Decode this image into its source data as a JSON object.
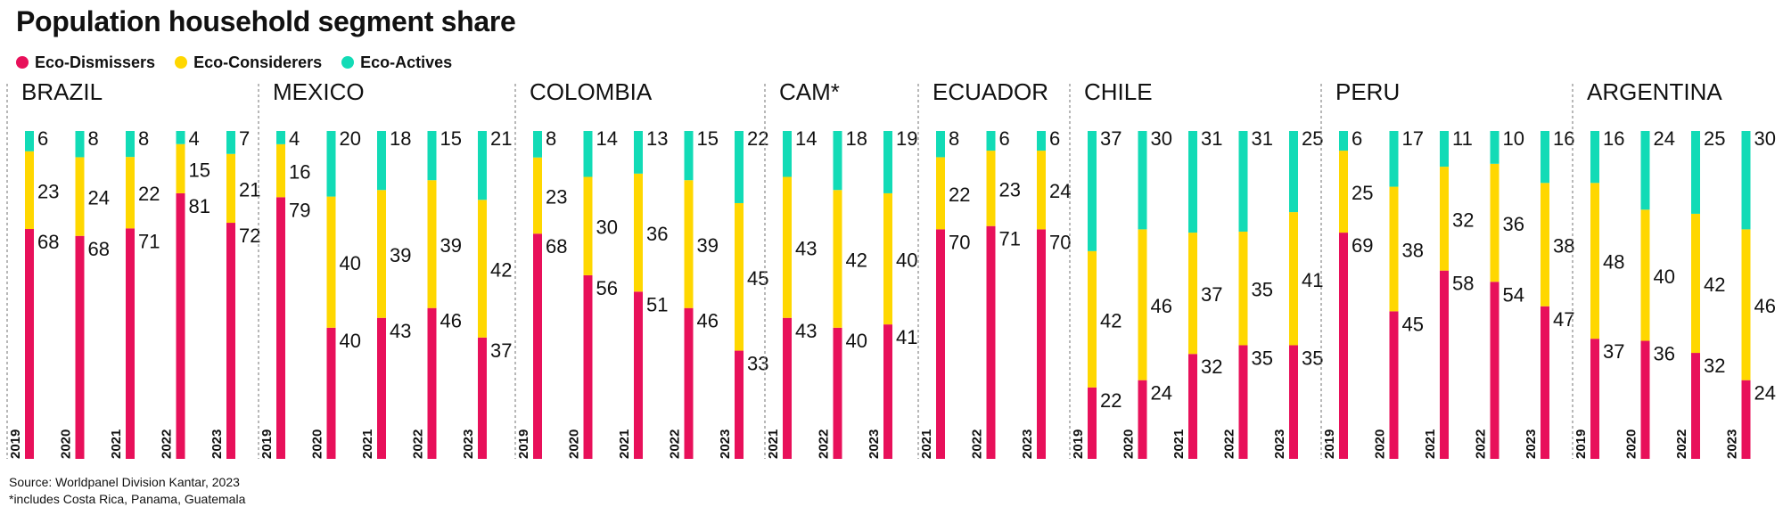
{
  "title": "Population household segment share",
  "legend": [
    {
      "label": "Eco-Dismissers",
      "color": "#e8105a"
    },
    {
      "label": "Eco-Considerers",
      "color": "#ffd700"
    },
    {
      "label": "Eco-Actives",
      "color": "#12dbb6"
    }
  ],
  "footer": {
    "source": "Source: Worldpanel Division Kantar, 2023",
    "note": "*includes Costa Rica, Panama, Guatemala"
  },
  "chart_data": {
    "type": "bar",
    "stacked": true,
    "ylim": [
      0,
      100
    ],
    "series_names": [
      "Eco-Dismissers",
      "Eco-Considerers",
      "Eco-Actives"
    ],
    "groups": [
      {
        "name": "BRAZIL",
        "bars": [
          {
            "year": "2019",
            "values": [
              68,
              23,
              6
            ]
          },
          {
            "year": "2020",
            "values": [
              68,
              24,
              8
            ]
          },
          {
            "year": "2021",
            "values": [
              71,
              22,
              8
            ]
          },
          {
            "year": "2022",
            "values": [
              81,
              15,
              4
            ]
          },
          {
            "year": "2023",
            "values": [
              72,
              21,
              7
            ]
          }
        ]
      },
      {
        "name": "MEXICO",
        "bars": [
          {
            "year": "2019",
            "values": [
              79,
              16,
              4
            ]
          },
          {
            "year": "2020",
            "values": [
              40,
              40,
              20
            ]
          },
          {
            "year": "2021",
            "values": [
              43,
              39,
              18
            ]
          },
          {
            "year": "2022",
            "values": [
              46,
              39,
              15
            ]
          },
          {
            "year": "2023",
            "values": [
              37,
              42,
              21
            ]
          }
        ]
      },
      {
        "name": "COLOMBIA",
        "bars": [
          {
            "year": "2019",
            "values": [
              68,
              23,
              8
            ]
          },
          {
            "year": "2020",
            "values": [
              56,
              30,
              14
            ]
          },
          {
            "year": "2021",
            "values": [
              51,
              36,
              13
            ]
          },
          {
            "year": "2022",
            "values": [
              46,
              39,
              15
            ]
          },
          {
            "year": "2023",
            "values": [
              33,
              45,
              22
            ]
          }
        ]
      },
      {
        "name": "CAM*",
        "bars": [
          {
            "year": "2021",
            "values": [
              43,
              43,
              14
            ]
          },
          {
            "year": "2022",
            "values": [
              40,
              42,
              18
            ]
          },
          {
            "year": "2023",
            "values": [
              41,
              40,
              19
            ]
          }
        ]
      },
      {
        "name": "ECUADOR",
        "bars": [
          {
            "year": "2021",
            "values": [
              70,
              22,
              8
            ]
          },
          {
            "year": "2022",
            "values": [
              71,
              23,
              6
            ]
          },
          {
            "year": "2023",
            "values": [
              70,
              24,
              6
            ]
          }
        ]
      },
      {
        "name": "CHILE",
        "bars": [
          {
            "year": "2019",
            "values": [
              22,
              42,
              37
            ]
          },
          {
            "year": "2020",
            "values": [
              24,
              46,
              30
            ]
          },
          {
            "year": "2021",
            "values": [
              32,
              37,
              31
            ]
          },
          {
            "year": "2022",
            "values": [
              35,
              35,
              31
            ]
          },
          {
            "year": "2023",
            "values": [
              35,
              41,
              25
            ]
          }
        ]
      },
      {
        "name": "PERU",
        "bars": [
          {
            "year": "2019",
            "values": [
              69,
              25,
              6
            ]
          },
          {
            "year": "2020",
            "values": [
              45,
              38,
              17
            ]
          },
          {
            "year": "2021",
            "values": [
              58,
              32,
              11
            ]
          },
          {
            "year": "2022",
            "values": [
              54,
              36,
              10
            ]
          },
          {
            "year": "2023",
            "values": [
              47,
              38,
              16
            ]
          }
        ]
      },
      {
        "name": "ARGENTINA",
        "bars": [
          {
            "year": "2019",
            "values": [
              37,
              48,
              16
            ]
          },
          {
            "year": "2020",
            "values": [
              36,
              40,
              24
            ]
          },
          {
            "year": "2022",
            "values": [
              32,
              42,
              25
            ]
          },
          {
            "year": "2023",
            "values": [
              24,
              46,
              30
            ]
          }
        ]
      }
    ]
  }
}
